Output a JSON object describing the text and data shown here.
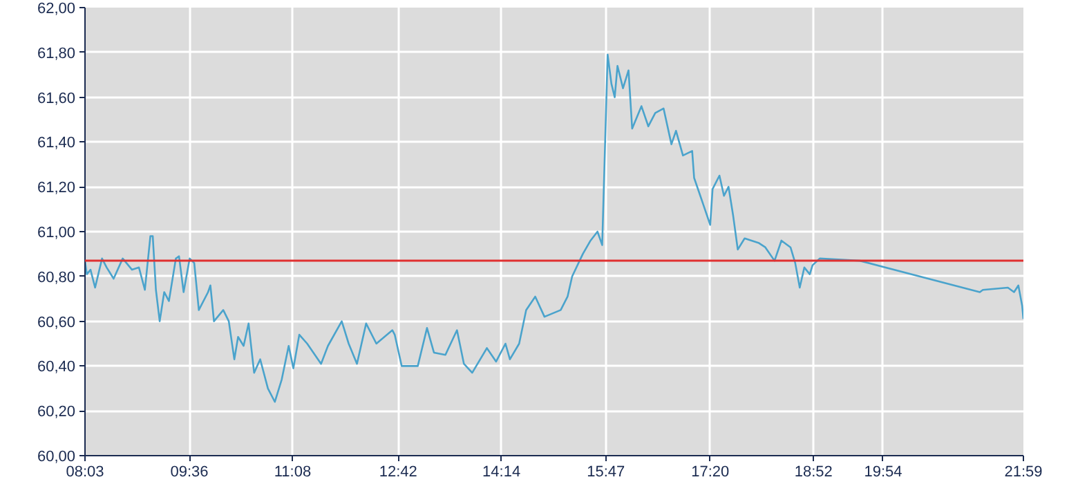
{
  "chart_data": {
    "type": "line",
    "x": [
      8.05,
      8.077,
      8.132,
      8.2,
      8.303,
      8.372,
      8.475,
      8.61,
      8.748,
      8.851,
      8.939,
      9.021,
      9.056,
      9.103,
      9.159,
      9.226,
      9.296,
      9.399,
      9.446,
      9.514,
      9.604,
      9.672,
      9.74,
      9.877,
      9.912,
      9.965,
      10.103,
      10.185,
      10.267,
      10.323,
      10.405,
      10.479,
      10.561,
      10.651,
      10.766,
      10.869,
      10.971,
      11.074,
      11.144,
      11.232,
      11.349,
      11.555,
      11.657,
      11.862,
      11.965,
      12.088,
      12.224,
      12.376,
      12.614,
      12.649,
      12.752,
      12.991,
      13.128,
      13.231,
      13.401,
      13.573,
      13.676,
      13.799,
      14.017,
      14.154,
      14.293,
      14.359,
      14.496,
      14.6,
      14.735,
      14.872,
      15.113,
      15.215,
      15.283,
      15.441,
      15.556,
      15.659,
      15.729,
      15.81,
      15.866,
      15.915,
      15.956,
      16.038,
      16.12,
      16.174,
      16.312,
      16.414,
      16.517,
      16.64,
      16.757,
      16.825,
      16.928,
      17.065,
      17.094,
      17.231,
      17.333,
      17.368,
      17.47,
      17.537,
      17.605,
      17.674,
      17.742,
      17.844,
      18.049,
      18.151,
      18.288,
      18.39,
      18.525,
      18.595,
      18.662,
      18.73,
      18.811,
      18.852,
      18.959,
      19.556,
      21.336,
      21.381,
      21.753,
      21.844,
      21.908,
      21.964,
      21.983
    ],
    "series": [
      {
        "color": "#4aa3cc",
        "values": [
          60.87,
          60.81,
          60.83,
          60.75,
          60.88,
          60.84,
          60.79,
          60.88,
          60.83,
          60.84,
          60.74,
          60.98,
          60.98,
          60.74,
          60.6,
          60.73,
          60.69,
          60.88,
          60.89,
          60.73,
          60.88,
          60.86,
          60.65,
          60.73,
          60.76,
          60.6,
          60.65,
          60.6,
          60.43,
          60.53,
          60.49,
          60.59,
          60.37,
          60.43,
          60.3,
          60.24,
          60.34,
          60.49,
          60.39,
          60.54,
          60.5,
          60.41,
          60.49,
          60.6,
          60.5,
          60.41,
          60.59,
          60.5,
          60.56,
          60.54,
          60.4,
          60.4,
          60.57,
          60.46,
          60.45,
          60.56,
          60.41,
          60.37,
          60.48,
          60.42,
          60.5,
          60.43,
          60.5,
          60.65,
          60.71,
          60.62,
          60.65,
          60.71,
          60.8,
          60.9,
          60.96,
          61.0,
          60.94,
          61.79,
          61.66,
          61.6,
          61.74,
          61.64,
          61.72,
          61.46,
          61.56,
          61.47,
          61.53,
          61.55,
          61.39,
          61.45,
          61.34,
          61.36,
          61.24,
          61.12,
          61.03,
          61.19,
          61.25,
          61.16,
          61.2,
          61.07,
          60.92,
          60.97,
          60.95,
          60.93,
          60.87,
          60.96,
          60.93,
          60.86,
          60.75,
          60.84,
          60.81,
          60.85,
          60.88,
          60.87,
          60.73,
          60.74,
          60.75,
          60.73,
          60.76,
          60.67,
          60.61
        ]
      }
    ],
    "xlim": [
      8.05,
      21.983
    ],
    "xticks": [
      {
        "value": 8.05,
        "label": "08:03"
      },
      {
        "value": 9.6,
        "label": "09:36"
      },
      {
        "value": 11.133,
        "label": "11:08"
      },
      {
        "value": 12.7,
        "label": "12:42"
      },
      {
        "value": 14.233,
        "label": "14:14"
      },
      {
        "value": 15.783,
        "label": "15:47"
      },
      {
        "value": 17.333,
        "label": "17:20"
      },
      {
        "value": 18.867,
        "label": "18:52"
      },
      {
        "value": 19.9,
        "label": "19:54"
      },
      {
        "value": 21.983,
        "label": "21:59"
      }
    ],
    "ylim": [
      60.0,
      62.0
    ],
    "yticks": [
      {
        "value": 60.0,
        "label": "60,00"
      },
      {
        "value": 60.2,
        "label": "60,20"
      },
      {
        "value": 60.4,
        "label": "60,40"
      },
      {
        "value": 60.6,
        "label": "60,60"
      },
      {
        "value": 60.8,
        "label": "60,80"
      },
      {
        "value": 61.0,
        "label": "61,00"
      },
      {
        "value": 61.2,
        "label": "61,20"
      },
      {
        "value": 61.4,
        "label": "61,40"
      },
      {
        "value": 61.6,
        "label": "61,60"
      },
      {
        "value": 61.8,
        "label": "61,80"
      },
      {
        "value": 62.0,
        "label": "62,00"
      }
    ],
    "ref_lines": [
      {
        "axis": "y",
        "value": 60.87,
        "color": "#e03030"
      }
    ],
    "grid": true,
    "marker": "none",
    "line_style": "solid"
  }
}
